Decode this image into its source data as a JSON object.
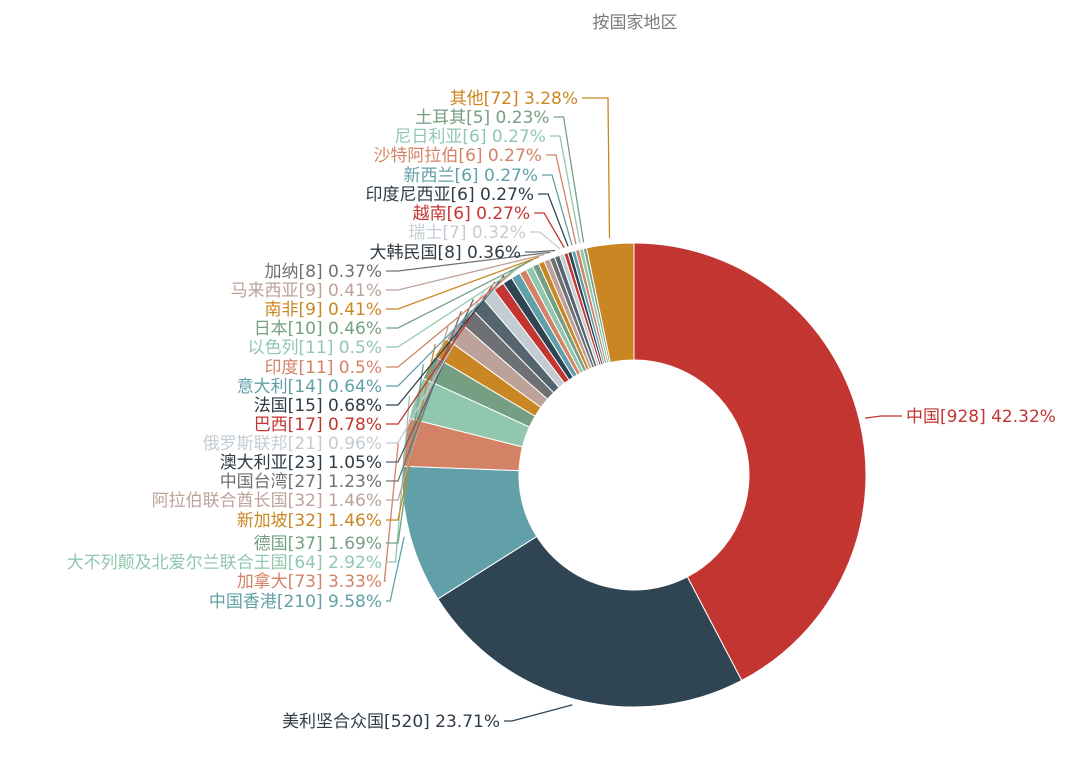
{
  "chart_data": {
    "type": "pie",
    "variant": "donut",
    "title": "按国家地区",
    "slices": [
      {
        "name": "中国",
        "value": 928,
        "percent": "42.32%",
        "color": "#c23531"
      },
      {
        "name": "美利坚合众国",
        "value": 520,
        "percent": "23.71%",
        "color": "#2f4554"
      },
      {
        "name": "中国香港",
        "value": 210,
        "percent": "9.58%",
        "color": "#61a0a8"
      },
      {
        "name": "加拿大",
        "value": 73,
        "percent": "3.33%",
        "color": "#d48265"
      },
      {
        "name": "大不列颠及北爱尔兰联合王国",
        "value": 64,
        "percent": "2.92%",
        "color": "#91c7ae"
      },
      {
        "name": "德国",
        "value": 37,
        "percent": "1.69%",
        "color": "#749f83"
      },
      {
        "name": "新加坡",
        "value": 32,
        "percent": "1.46%",
        "color": "#ca8622"
      },
      {
        "name": "阿拉伯联合酋长国",
        "value": 32,
        "percent": "1.46%",
        "color": "#bda29a"
      },
      {
        "name": "中国台湾",
        "value": 27,
        "percent": "1.23%",
        "color": "#6e7074"
      },
      {
        "name": "澳大利亚",
        "value": 23,
        "percent": "1.05%",
        "color": "#546570"
      },
      {
        "name": "俄罗斯联邦",
        "value": 21,
        "percent": "0.96%",
        "color": "#c4ccd3"
      },
      {
        "name": "巴西",
        "value": 17,
        "percent": "0.78%",
        "color": "#c23531"
      },
      {
        "name": "法国",
        "value": 15,
        "percent": "0.68%",
        "color": "#2f4554"
      },
      {
        "name": "意大利",
        "value": 14,
        "percent": "0.64%",
        "color": "#61a0a8"
      },
      {
        "name": "印度",
        "value": 11,
        "percent": "0.5%",
        "color": "#d48265"
      },
      {
        "name": "以色列",
        "value": 11,
        "percent": "0.5%",
        "color": "#91c7ae"
      },
      {
        "name": "日本",
        "value": 10,
        "percent": "0.46%",
        "color": "#749f83"
      },
      {
        "name": "南非",
        "value": 9,
        "percent": "0.41%",
        "color": "#ca8622"
      },
      {
        "name": "马来西亚",
        "value": 9,
        "percent": "0.41%",
        "color": "#bda29a"
      },
      {
        "name": "加纳",
        "value": 8,
        "percent": "0.37%",
        "color": "#6e7074"
      },
      {
        "name": "大韩民国",
        "value": 8,
        "percent": "0.36%",
        "color": "#546570"
      },
      {
        "name": "瑞士",
        "value": 7,
        "percent": "0.32%",
        "color": "#c4ccd3"
      },
      {
        "name": "越南",
        "value": 6,
        "percent": "0.27%",
        "color": "#c23531"
      },
      {
        "name": "印度尼西亚",
        "value": 6,
        "percent": "0.27%",
        "color": "#2f4554"
      },
      {
        "name": "新西兰",
        "value": 6,
        "percent": "0.27%",
        "color": "#61a0a8"
      },
      {
        "name": "沙特阿拉伯",
        "value": 6,
        "percent": "0.27%",
        "color": "#d48265"
      },
      {
        "name": "尼日利亚",
        "value": 6,
        "percent": "0.27%",
        "color": "#91c7ae"
      },
      {
        "name": "土耳其",
        "value": 5,
        "percent": "0.23%",
        "color": "#749f83"
      },
      {
        "name": "其他",
        "value": 72,
        "percent": "3.28%",
        "color": "#ca8622"
      }
    ]
  }
}
